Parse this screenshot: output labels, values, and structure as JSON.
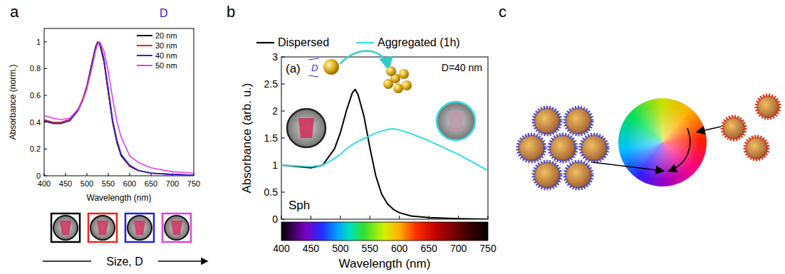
{
  "panel_labels": [
    "a",
    "b",
    "c"
  ],
  "chart_data": [
    {
      "type": "line",
      "x_label": "Wavelength (nm)",
      "y_label": "Absorbance (norm.)",
      "annotations": [
        "D",
        "Size, D"
      ],
      "x": [
        400,
        420,
        440,
        460,
        480,
        490,
        500,
        510,
        520,
        525,
        530,
        540,
        550,
        560,
        570,
        580,
        600,
        620,
        650,
        700,
        750
      ],
      "series": [
        {
          "name": "20 nm",
          "color": "#000000",
          "values": [
            0.41,
            0.4,
            0.4,
            0.42,
            0.5,
            0.57,
            0.67,
            0.82,
            0.96,
            1.0,
            0.98,
            0.85,
            0.62,
            0.4,
            0.25,
            0.15,
            0.07,
            0.04,
            0.02,
            0.01,
            0.005
          ]
        },
        {
          "name": "30 nm",
          "color": "#e8261c",
          "values": [
            0.42,
            0.4,
            0.4,
            0.42,
            0.5,
            0.57,
            0.67,
            0.81,
            0.95,
            1.0,
            0.99,
            0.86,
            0.63,
            0.41,
            0.26,
            0.16,
            0.07,
            0.04,
            0.02,
            0.01,
            0.005
          ]
        },
        {
          "name": "40 nm",
          "color": "#2222dd",
          "values": [
            0.41,
            0.39,
            0.39,
            0.41,
            0.49,
            0.56,
            0.66,
            0.8,
            0.95,
            0.99,
            1.0,
            0.87,
            0.65,
            0.42,
            0.27,
            0.16,
            0.08,
            0.04,
            0.02,
            0.01,
            0.005
          ]
        },
        {
          "name": "50 nm",
          "color": "#e040e0",
          "values": [
            0.45,
            0.43,
            0.42,
            0.43,
            0.5,
            0.56,
            0.65,
            0.78,
            0.93,
            0.98,
            1.0,
            0.93,
            0.78,
            0.58,
            0.41,
            0.29,
            0.15,
            0.1,
            0.06,
            0.03,
            0.02
          ]
        }
      ],
      "xlim": [
        400,
        750
      ],
      "ylim": [
        0,
        1.1
      ],
      "xticks": [
        400,
        450,
        500,
        550,
        600,
        650,
        700,
        750
      ],
      "yticks": [
        0,
        0.2,
        0.4,
        0.6,
        0.8,
        1
      ],
      "legend": "upper right"
    },
    {
      "type": "line",
      "x_label": "Wavelength (nm)",
      "y_label": "Absorbance (arb. u.)",
      "annotations": [
        "(a)",
        "D=40 nm",
        "Sph",
        "D"
      ],
      "x": [
        400,
        450,
        470,
        490,
        500,
        510,
        520,
        525,
        530,
        540,
        550,
        560,
        570,
        580,
        590,
        600,
        620,
        650,
        700,
        750
      ],
      "series": [
        {
          "name": "Dispersed",
          "color": "#000000",
          "values": [
            1.0,
            0.95,
            1.0,
            1.3,
            1.6,
            2.0,
            2.33,
            2.4,
            2.3,
            1.9,
            1.32,
            0.8,
            0.46,
            0.28,
            0.18,
            0.12,
            0.06,
            0.03,
            0.01,
            0.0
          ]
        },
        {
          "name": "Aggregated (1h)",
          "color": "#33dede",
          "values": [
            1.0,
            0.97,
            1.0,
            1.12,
            1.2,
            1.3,
            1.38,
            1.41,
            1.44,
            1.49,
            1.54,
            1.59,
            1.63,
            1.66,
            1.67,
            1.65,
            1.58,
            1.45,
            1.2,
            0.9
          ]
        }
      ],
      "xlim": [
        400,
        750
      ],
      "ylim": [
        0,
        3
      ],
      "xticks": [
        400,
        450,
        500,
        550,
        600,
        650,
        700,
        750
      ],
      "yticks": [
        0,
        0.5,
        1,
        1.5,
        2,
        2.5,
        3
      ],
      "legend": "top"
    }
  ]
}
